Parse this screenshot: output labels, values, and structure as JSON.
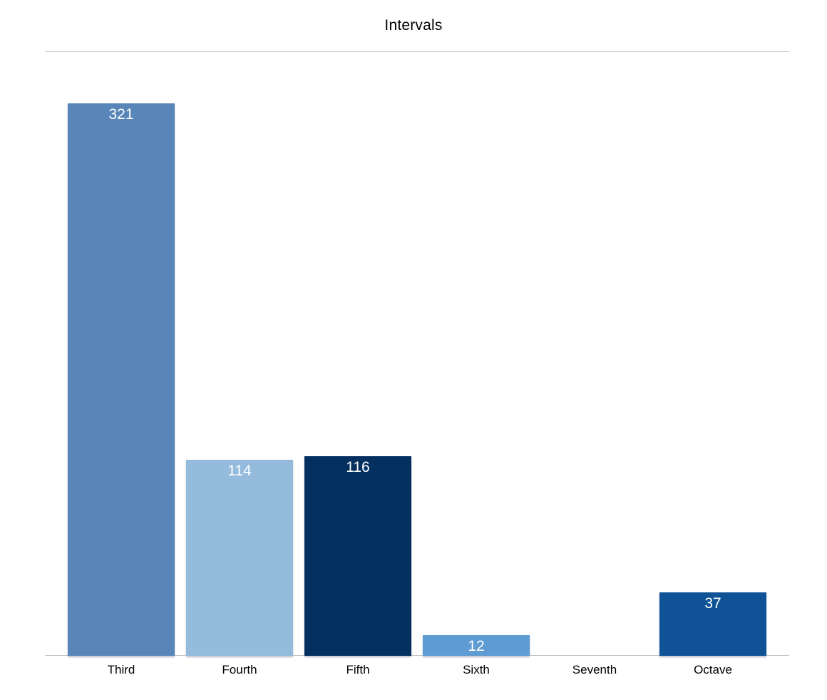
{
  "chart_data": {
    "type": "bar",
    "title": "Intervals",
    "categories": [
      "Third",
      "Fourth",
      "Fifth",
      "Sixth",
      "Seventh",
      "Octave"
    ],
    "values": [
      321,
      114,
      116,
      12,
      0,
      37
    ],
    "value_labels": [
      "321",
      "114",
      "116",
      "12",
      "",
      "37"
    ],
    "bar_colors": [
      "#5886B8",
      "#95BBDC",
      "#04305F",
      "#5E9BD2",
      null,
      "#0F5396"
    ],
    "xlabel": "",
    "ylabel": "",
    "ylim": [
      0,
      321
    ],
    "grid": false,
    "legend": false
  },
  "colors": {
    "background": "#ffffff",
    "title_text": "#000000",
    "divider_line": "#c7c7c7",
    "axis_line": "#c3c3c3",
    "value_label_text": "#ffffff",
    "category_label_text": "#000000"
  }
}
